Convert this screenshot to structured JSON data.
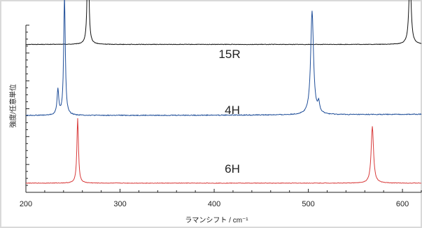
{
  "chart_data": {
    "type": "line",
    "xlabel": "ラマンシフト / cm⁻¹",
    "ylabel": "強度/任意単位",
    "xlim": [
      200,
      620
    ],
    "x_ticks": [
      "200",
      "300",
      "400",
      "500",
      "600"
    ],
    "grid": false,
    "series": [
      {
        "name": "15R",
        "color": "#111111",
        "baseline": 0.885,
        "noise": 0.0015,
        "peaks": [
          {
            "x": 266,
            "height": 0.73,
            "width": 0.9
          },
          {
            "x": 608,
            "height": 0.42,
            "width": 1.4
          }
        ]
      },
      {
        "name": "4H",
        "color": "#1f4e99",
        "baseline": 0.46,
        "noise": 0.0025,
        "peaks": [
          {
            "x": 234,
            "height": 0.15,
            "width": 1.1
          },
          {
            "x": 241,
            "height": 0.72,
            "width": 1.0
          },
          {
            "x": 504,
            "height": 0.62,
            "width": 1.8
          },
          {
            "x": 511,
            "height": 0.06,
            "width": 1.2
          }
        ]
      },
      {
        "name": "6H",
        "color": "#d83a3a",
        "baseline": 0.055,
        "noise": 0.0015,
        "peaks": [
          {
            "x": 255,
            "height": 0.39,
            "width": 1.0
          },
          {
            "x": 568,
            "height": 0.34,
            "width": 1.5
          }
        ]
      }
    ]
  }
}
